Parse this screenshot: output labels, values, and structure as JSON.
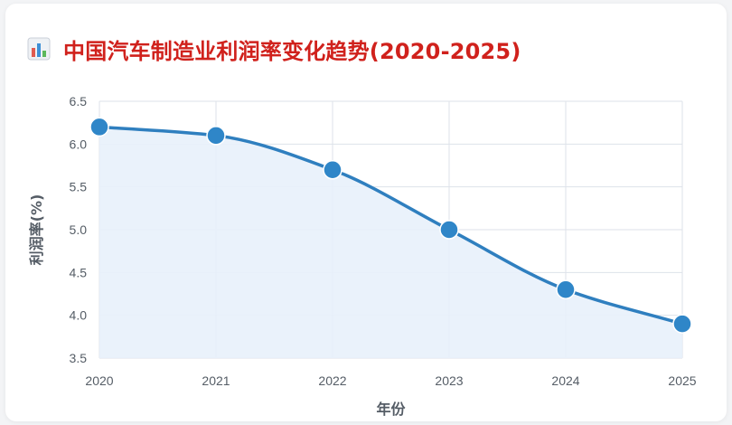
{
  "title": "中国汽车制造业利润率变化趋势(2020-2025)",
  "icons": {
    "title_icon": "bar-chart-icon"
  },
  "colors": {
    "title": "#d0211c",
    "line": "#2f7fbf",
    "point": "#2f86c8",
    "area": "#e8f1fb",
    "grid": "#dde2ea"
  },
  "chart_data": {
    "type": "line",
    "xlabel": "年份",
    "ylabel": "利润率(%)",
    "categories": [
      "2020",
      "2021",
      "2022",
      "2023",
      "2024",
      "2025"
    ],
    "series": [
      {
        "values": [
          6.2,
          6.1,
          5.7,
          5.0,
          4.3,
          3.9
        ]
      }
    ],
    "y_ticks": [
      "3.5",
      "4.0",
      "4.5",
      "5.0",
      "5.5",
      "6.0",
      "6.5"
    ],
    "ylim": [
      3.5,
      6.5
    ],
    "grid": true,
    "fill_area": true,
    "smooth": true,
    "legend": "none"
  }
}
